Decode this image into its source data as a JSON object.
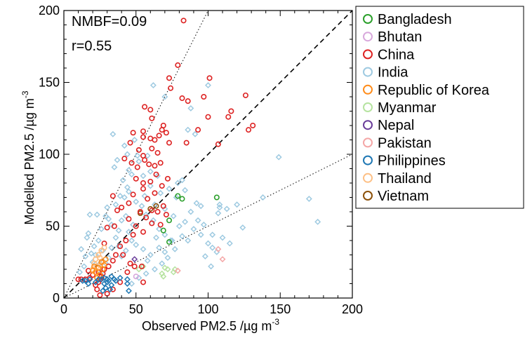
{
  "chart_data": {
    "type": "scatter",
    "title": "",
    "xlabel": "Observed PM2.5 /µg m",
    "xlabel_sup": "-3",
    "ylabel": "Modelled PM2.5 /µg m",
    "ylabel_sup": "-3",
    "xlim": [
      0,
      200
    ],
    "ylim": [
      0,
      200
    ],
    "x_ticks": [
      "0",
      "50",
      "100",
      "150",
      "200"
    ],
    "y_ticks": [
      "0",
      "50",
      "100",
      "150",
      "200"
    ],
    "grid": false,
    "legend_position": "outside-right",
    "annotations": [
      "NMBF=0.09",
      "r=0.55"
    ],
    "reference_lines": [
      {
        "slope": 1,
        "style": "dashed"
      },
      {
        "slope": 2,
        "style": "dotted"
      },
      {
        "slope": 0.5,
        "style": "dotted"
      }
    ],
    "series": [
      {
        "name": "Bangladesh",
        "color": "#2ca02c",
        "marker": "circle",
        "points": [
          [
            79,
            71
          ],
          [
            82,
            69
          ],
          [
            73,
            54
          ],
          [
            69,
            47
          ],
          [
            73,
            39
          ],
          [
            106,
            70
          ]
        ]
      },
      {
        "name": "Bhutan",
        "color": "#d8a8dc",
        "marker": "circle",
        "points": [
          [
            50,
            15
          ]
        ]
      },
      {
        "name": "China",
        "color": "#dd2222",
        "marker": "circle",
        "points": [
          [
            83,
            193
          ],
          [
            101,
            153
          ],
          [
            79,
            162
          ],
          [
            97,
            140
          ],
          [
            73,
            153
          ],
          [
            74,
            146
          ],
          [
            126,
            141
          ],
          [
            82,
            139
          ],
          [
            86,
            137
          ],
          [
            60,
            131
          ],
          [
            56,
            133
          ],
          [
            116,
            130
          ],
          [
            114,
            126
          ],
          [
            61,
            125
          ],
          [
            100,
            126
          ],
          [
            69,
            120
          ],
          [
            68,
            117
          ],
          [
            71,
            115
          ],
          [
            93,
            117
          ],
          [
            66,
            113
          ],
          [
            55,
            116
          ],
          [
            55,
            112
          ],
          [
            60,
            111
          ],
          [
            63,
            110
          ],
          [
            48,
            115
          ],
          [
            52,
            103
          ],
          [
            61,
            104
          ],
          [
            65,
            101
          ],
          [
            46,
            108
          ],
          [
            55,
            99
          ],
          [
            73,
            108
          ],
          [
            85,
            108
          ],
          [
            107,
            107
          ],
          [
            131,
            120
          ],
          [
            128,
            117
          ],
          [
            42,
            97
          ],
          [
            47,
            94
          ],
          [
            51,
            91
          ],
          [
            56,
            96
          ],
          [
            59,
            93
          ],
          [
            63,
            92
          ],
          [
            67,
            94
          ],
          [
            50,
            83
          ],
          [
            55,
            80
          ],
          [
            60,
            81
          ],
          [
            64,
            86
          ],
          [
            48,
            72
          ],
          [
            55,
            76
          ],
          [
            58,
            69
          ],
          [
            63,
            73
          ],
          [
            68,
            78
          ],
          [
            72,
            83
          ],
          [
            61,
            61
          ],
          [
            65,
            60
          ],
          [
            69,
            64
          ],
          [
            71,
            58
          ],
          [
            53,
            60
          ],
          [
            57,
            56
          ],
          [
            61,
            52
          ],
          [
            67,
            51
          ],
          [
            45,
            55
          ],
          [
            50,
            50
          ],
          [
            55,
            46
          ],
          [
            48,
            44
          ],
          [
            43,
            40
          ],
          [
            39,
            36
          ],
          [
            36,
            30
          ],
          [
            34,
            26
          ],
          [
            31,
            22
          ],
          [
            28,
            20
          ],
          [
            27,
            17
          ],
          [
            26,
            15
          ],
          [
            25,
            13
          ],
          [
            24,
            11
          ],
          [
            22,
            9
          ],
          [
            20,
            16
          ],
          [
            18,
            14
          ],
          [
            15,
            13
          ],
          [
            12,
            13
          ],
          [
            10,
            13
          ],
          [
            17,
            19
          ],
          [
            24,
            18
          ],
          [
            23,
            6
          ],
          [
            30,
            3
          ],
          [
            34,
            6
          ],
          [
            39,
            11
          ],
          [
            44,
            18
          ],
          [
            46,
            24
          ],
          [
            54,
            22
          ],
          [
            55,
            11
          ],
          [
            25,
            2
          ],
          [
            40,
            63
          ],
          [
            45,
            66
          ],
          [
            37,
            61
          ],
          [
            34,
            71
          ],
          [
            30,
            49
          ],
          [
            35,
            50
          ],
          [
            28,
            38
          ],
          [
            41,
            30
          ],
          [
            49,
            22
          ]
        ]
      },
      {
        "name": "India",
        "color": "#9ecae1",
        "marker": "diamond",
        "points": [
          [
            100,
            148
          ],
          [
            62,
            148
          ],
          [
            88,
            132
          ],
          [
            70,
            140
          ],
          [
            86,
            117
          ],
          [
            91,
            114
          ],
          [
            34,
            114
          ],
          [
            49,
            110
          ],
          [
            37,
            96
          ],
          [
            42,
            106
          ],
          [
            44,
            100
          ],
          [
            45,
            89
          ],
          [
            52,
            95
          ],
          [
            60,
            88
          ],
          [
            65,
            85
          ],
          [
            79,
            80
          ],
          [
            82,
            82
          ],
          [
            73,
            76
          ],
          [
            78,
            70
          ],
          [
            84,
            75
          ],
          [
            92,
            66
          ],
          [
            95,
            64
          ],
          [
            107,
            59
          ],
          [
            108,
            63
          ],
          [
            108,
            65
          ],
          [
            113,
            62
          ],
          [
            120,
            65
          ],
          [
            138,
            70
          ],
          [
            149,
            98
          ],
          [
            170,
            69
          ],
          [
            176,
            53
          ],
          [
            124,
            49
          ],
          [
            90,
            48
          ],
          [
            95,
            44
          ],
          [
            100,
            38
          ],
          [
            103,
            35
          ],
          [
            106,
            32
          ],
          [
            98,
            29
          ],
          [
            102,
            22
          ],
          [
            82,
            43
          ],
          [
            86,
            40
          ],
          [
            70,
            32
          ],
          [
            75,
            40
          ],
          [
            64,
            42
          ],
          [
            66,
            35
          ],
          [
            60,
            30
          ],
          [
            58,
            26
          ],
          [
            55,
            34
          ],
          [
            50,
            37
          ],
          [
            47,
            40
          ],
          [
            43,
            33
          ],
          [
            40,
            29
          ],
          [
            38,
            36
          ],
          [
            36,
            42
          ],
          [
            33,
            35
          ],
          [
            31,
            28
          ],
          [
            29,
            24
          ],
          [
            26,
            18
          ],
          [
            25,
            24
          ],
          [
            22,
            30
          ],
          [
            20,
            25
          ],
          [
            27,
            33
          ],
          [
            33,
            51
          ],
          [
            29,
            57
          ],
          [
            23,
            58
          ],
          [
            18,
            58
          ],
          [
            17,
            45
          ],
          [
            16,
            42
          ],
          [
            36,
            65
          ],
          [
            42,
            70
          ],
          [
            45,
            74
          ],
          [
            50,
            67
          ],
          [
            54,
            64
          ],
          [
            57,
            58
          ],
          [
            62,
            54
          ],
          [
            66,
            48
          ],
          [
            70,
            44
          ],
          [
            74,
            40
          ],
          [
            45,
            46
          ],
          [
            48,
            51
          ],
          [
            43,
            57
          ],
          [
            40,
            54
          ],
          [
            38,
            47
          ],
          [
            41,
            82
          ],
          [
            55,
            85
          ],
          [
            60,
            78
          ],
          [
            67,
            73
          ],
          [
            47,
            86
          ],
          [
            51,
            99
          ],
          [
            35,
            91
          ],
          [
            58,
            99
          ],
          [
            31,
            55
          ],
          [
            26,
            48
          ],
          [
            24,
            40
          ],
          [
            21,
            36
          ],
          [
            19,
            31
          ],
          [
            15,
            29
          ],
          [
            12,
            34
          ],
          [
            14,
            22
          ],
          [
            11,
            18
          ],
          [
            30,
            63
          ],
          [
            39,
            71
          ],
          [
            44,
            77
          ],
          [
            56,
            71
          ],
          [
            63,
            65
          ],
          [
            70,
            62
          ],
          [
            76,
            57
          ],
          [
            80,
            50
          ],
          [
            84,
            53
          ],
          [
            88,
            60
          ],
          [
            93,
            54
          ],
          [
            97,
            51
          ],
          [
            103,
            44
          ],
          [
            110,
            42
          ],
          [
            115,
            38
          ],
          [
            77,
            34
          ],
          [
            72,
            28
          ],
          [
            68,
            24
          ],
          [
            63,
            20
          ],
          [
            57,
            17
          ],
          [
            52,
            14
          ],
          [
            47,
            10
          ]
        ]
      },
      {
        "name": "Republic of Korea",
        "color": "#ff8c1a",
        "marker": "circle",
        "points": [
          [
            22,
            18
          ],
          [
            24,
            21
          ],
          [
            26,
            25
          ],
          [
            25,
            16
          ],
          [
            23,
            14
          ],
          [
            27,
            20
          ],
          [
            28,
            23
          ],
          [
            20,
            19
          ],
          [
            21,
            22
          ],
          [
            29,
            27
          ]
        ]
      },
      {
        "name": "Myanmar",
        "color": "#b6e3a0",
        "marker": "diamond",
        "points": [
          [
            68,
            17
          ],
          [
            70,
            21
          ],
          [
            72,
            20
          ],
          [
            76,
            18
          ],
          [
            77,
            20
          ],
          [
            69,
            15
          ],
          [
            52,
            20
          ],
          [
            55,
            22
          ]
        ]
      },
      {
        "name": "Nepal",
        "color": "#6a3d9a",
        "marker": "diamond",
        "points": [
          [
            49,
            27
          ]
        ]
      },
      {
        "name": "Pakistan",
        "color": "#f4a6a6",
        "marker": "diamond",
        "points": [
          [
            107,
            34
          ],
          [
            110,
            27
          ],
          [
            79,
            19
          ]
        ]
      },
      {
        "name": "Philippines",
        "color": "#1f78b4",
        "marker": "diamond",
        "points": [
          [
            30,
            11
          ],
          [
            33,
            9
          ],
          [
            35,
            13
          ],
          [
            36,
            12
          ],
          [
            31,
            12
          ],
          [
            29,
            7
          ],
          [
            32,
            6
          ],
          [
            27,
            5
          ],
          [
            28,
            10
          ],
          [
            22,
            11
          ],
          [
            18,
            13
          ],
          [
            13,
            12
          ],
          [
            17,
            10
          ],
          [
            15,
            12
          ],
          [
            24,
            13
          ],
          [
            26,
            13
          ],
          [
            30,
            13
          ],
          [
            33,
            15
          ],
          [
            28,
            14
          ],
          [
            44,
            10
          ],
          [
            44,
            13
          ],
          [
            39,
            14
          ],
          [
            45,
            5
          ]
        ]
      },
      {
        "name": "Thailand",
        "color": "#fdc086",
        "marker": "circle",
        "points": [
          [
            24,
            30
          ],
          [
            26,
            33
          ],
          [
            22,
            27
          ],
          [
            25,
            28
          ],
          [
            27,
            25
          ],
          [
            21,
            24
          ],
          [
            23,
            22
          ],
          [
            28,
            35
          ],
          [
            20,
            20
          ],
          [
            25,
            23
          ]
        ]
      },
      {
        "name": "Vietnam",
        "color": "#8c510a",
        "marker": "circle",
        "points": [
          [
            60,
            62
          ],
          [
            53,
            59
          ],
          [
            64,
            64
          ]
        ]
      }
    ]
  }
}
